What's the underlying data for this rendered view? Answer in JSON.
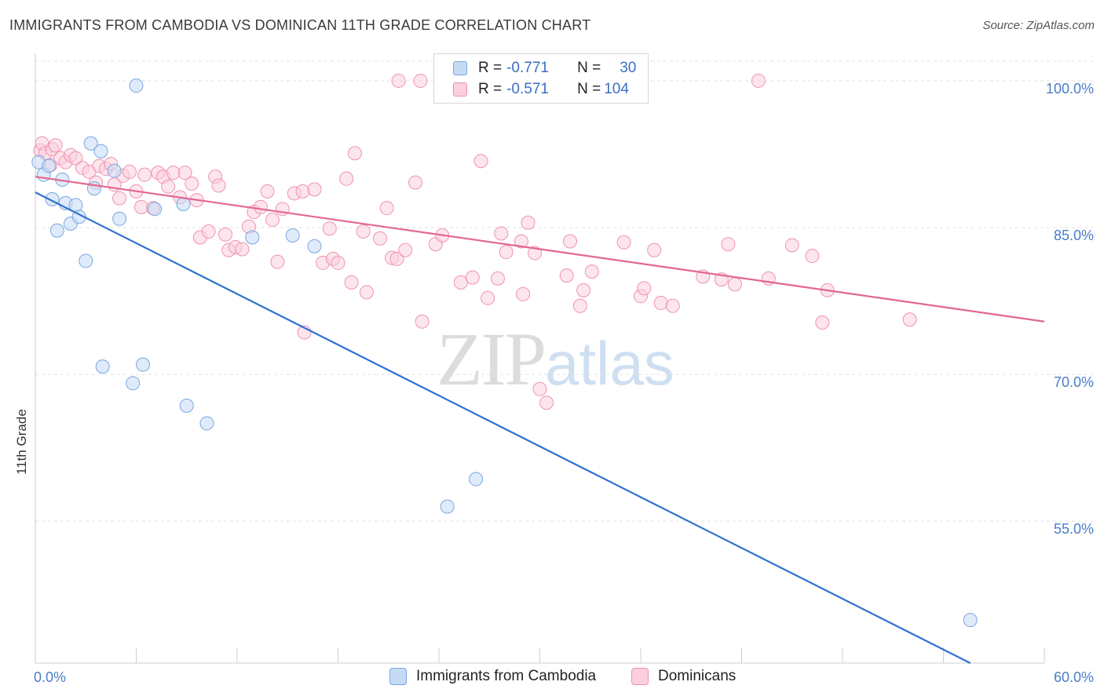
{
  "header": {
    "title": "IMMIGRANTS FROM CAMBODIA VS DOMINICAN 11TH GRADE CORRELATION CHART",
    "source": "Source: ZipAtlas.com"
  },
  "watermark": {
    "part1": "ZIP",
    "part2": "atlas"
  },
  "legend": {
    "rows": [
      {
        "r_label": "R =",
        "r_value": "-0.771",
        "n_label": "N =",
        "n_value": "30",
        "color": "#a9c8f0"
      },
      {
        "r_label": "R =",
        "r_value": "-0.571",
        "n_label": "N =",
        "n_value": "104",
        "color": "#f7b6cb"
      }
    ]
  },
  "colors": {
    "blue_fill": "#c5daf5",
    "blue_stroke": "#7aa6df",
    "blue_line": "#2f72d0",
    "pink_fill": "#fbcfdd",
    "pink_stroke": "#ee93b1",
    "pink_line": "#e2678f",
    "tick_text": "#4a7cc9",
    "grid": "#e0e0e0"
  },
  "chart_data": {
    "type": "scatter",
    "title": "IMMIGRANTS FROM CAMBODIA VS DOMINICAN 11TH GRADE CORRELATION CHART",
    "xlabel": "",
    "ylabel": "11th Grade",
    "xlim": [
      0,
      60
    ],
    "ylim": [
      40.5,
      102
    ],
    "x_ticks": [
      "0.0%",
      "60.0%"
    ],
    "y_ticks": [
      {
        "value": 55,
        "label": "55.0%"
      },
      {
        "value": 70,
        "label": "70.0%"
      },
      {
        "value": 85,
        "label": "85.0%"
      },
      {
        "value": 100,
        "label": "100.0%"
      }
    ],
    "grid": "horizontal dashed",
    "legend_position": "top-center",
    "series": [
      {
        "name": "Immigrants from Cambodia",
        "color": "#a9c8f0",
        "points": [
          [
            0.2,
            91.7
          ],
          [
            0.5,
            90.4
          ],
          [
            0.8,
            91.3
          ],
          [
            1.0,
            87.9
          ],
          [
            1.3,
            84.7
          ],
          [
            1.6,
            89.9
          ],
          [
            1.8,
            87.5
          ],
          [
            2.1,
            85.4
          ],
          [
            2.4,
            87.3
          ],
          [
            2.6,
            86.1
          ],
          [
            3.0,
            81.6
          ],
          [
            3.3,
            93.6
          ],
          [
            3.5,
            89.0
          ],
          [
            3.9,
            92.8
          ],
          [
            4.0,
            70.8
          ],
          [
            4.7,
            90.8
          ],
          [
            5.0,
            85.9
          ],
          [
            5.8,
            69.1
          ],
          [
            6.0,
            99.5
          ],
          [
            6.4,
            71.0
          ],
          [
            7.1,
            86.9
          ],
          [
            8.8,
            87.4
          ],
          [
            9.0,
            66.8
          ],
          [
            10.2,
            65.0
          ],
          [
            12.9,
            84.0
          ],
          [
            15.3,
            84.2
          ],
          [
            16.6,
            83.1
          ],
          [
            24.5,
            56.5
          ],
          [
            26.2,
            59.3
          ],
          [
            55.6,
            44.9
          ]
        ],
        "trend": {
          "x": [
            0,
            55.6
          ],
          "y": [
            88.6,
            40.5
          ]
        }
      },
      {
        "name": "Dominicans",
        "color": "#f7b6cb",
        "points": [
          [
            0.3,
            92.9
          ],
          [
            0.4,
            93.6
          ],
          [
            0.6,
            92.6
          ],
          [
            0.9,
            91.4
          ],
          [
            1.0,
            93.0
          ],
          [
            1.2,
            93.4
          ],
          [
            1.5,
            92.1
          ],
          [
            1.8,
            91.7
          ],
          [
            2.1,
            92.4
          ],
          [
            2.4,
            92.1
          ],
          [
            2.8,
            91.1
          ],
          [
            3.2,
            90.7
          ],
          [
            3.6,
            89.6
          ],
          [
            3.8,
            91.3
          ],
          [
            4.2,
            91.0
          ],
          [
            4.5,
            91.5
          ],
          [
            4.7,
            89.4
          ],
          [
            5.0,
            88.0
          ],
          [
            5.2,
            90.3
          ],
          [
            5.6,
            90.7
          ],
          [
            6.0,
            88.7
          ],
          [
            6.3,
            87.1
          ],
          [
            6.5,
            90.4
          ],
          [
            7.0,
            87.0
          ],
          [
            7.3,
            90.6
          ],
          [
            7.6,
            90.2
          ],
          [
            7.9,
            89.2
          ],
          [
            8.2,
            90.6
          ],
          [
            8.6,
            88.1
          ],
          [
            8.9,
            90.6
          ],
          [
            9.3,
            89.5
          ],
          [
            9.6,
            87.8
          ],
          [
            9.8,
            84.0
          ],
          [
            10.3,
            84.6
          ],
          [
            10.7,
            90.2
          ],
          [
            10.9,
            89.3
          ],
          [
            11.3,
            84.3
          ],
          [
            11.5,
            82.7
          ],
          [
            11.9,
            83.0
          ],
          [
            12.3,
            82.8
          ],
          [
            12.7,
            85.1
          ],
          [
            13.0,
            86.6
          ],
          [
            13.4,
            87.1
          ],
          [
            13.8,
            88.7
          ],
          [
            14.1,
            85.8
          ],
          [
            14.4,
            81.5
          ],
          [
            14.7,
            86.9
          ],
          [
            15.4,
            88.5
          ],
          [
            15.9,
            88.7
          ],
          [
            16.0,
            74.3
          ],
          [
            16.6,
            88.9
          ],
          [
            17.1,
            81.4
          ],
          [
            17.5,
            84.9
          ],
          [
            17.7,
            81.8
          ],
          [
            18.0,
            81.4
          ],
          [
            18.5,
            90.0
          ],
          [
            18.8,
            79.4
          ],
          [
            19.0,
            92.6
          ],
          [
            19.5,
            84.6
          ],
          [
            19.7,
            78.4
          ],
          [
            20.5,
            83.9
          ],
          [
            20.9,
            87.0
          ],
          [
            21.2,
            81.9
          ],
          [
            21.5,
            81.8
          ],
          [
            22.0,
            82.7
          ],
          [
            22.6,
            89.6
          ],
          [
            23.0,
            75.4
          ],
          [
            23.8,
            83.3
          ],
          [
            24.2,
            84.2
          ],
          [
            25.3,
            79.4
          ],
          [
            26.0,
            79.9
          ],
          [
            26.5,
            91.8
          ],
          [
            26.9,
            77.8
          ],
          [
            27.5,
            79.8
          ],
          [
            28.0,
            82.5
          ],
          [
            28.9,
            83.6
          ],
          [
            29.0,
            78.2
          ],
          [
            29.3,
            85.5
          ],
          [
            29.7,
            82.4
          ],
          [
            30.0,
            68.5
          ],
          [
            30.4,
            67.1
          ],
          [
            31.6,
            80.1
          ],
          [
            31.8,
            83.6
          ],
          [
            32.4,
            77.0
          ],
          [
            32.6,
            78.6
          ],
          [
            33.1,
            80.5
          ],
          [
            35.0,
            83.5
          ],
          [
            36.0,
            78.0
          ],
          [
            36.2,
            78.8
          ],
          [
            36.8,
            82.7
          ],
          [
            37.2,
            77.3
          ],
          [
            37.9,
            77.0
          ],
          [
            39.7,
            80.0
          ],
          [
            40.8,
            79.7
          ],
          [
            41.2,
            83.3
          ],
          [
            41.6,
            79.2
          ],
          [
            43.6,
            79.8
          ],
          [
            45.0,
            83.2
          ],
          [
            46.2,
            82.1
          ],
          [
            46.8,
            75.3
          ],
          [
            47.1,
            78.6
          ],
          [
            52.0,
            75.6
          ],
          [
            21.6,
            100.0
          ],
          [
            22.9,
            100.0
          ],
          [
            43.0,
            100.0
          ],
          [
            27.7,
            84.4
          ]
        ],
        "trend": {
          "x": [
            0,
            60
          ],
          "y": [
            90.2,
            75.4
          ]
        }
      }
    ]
  }
}
